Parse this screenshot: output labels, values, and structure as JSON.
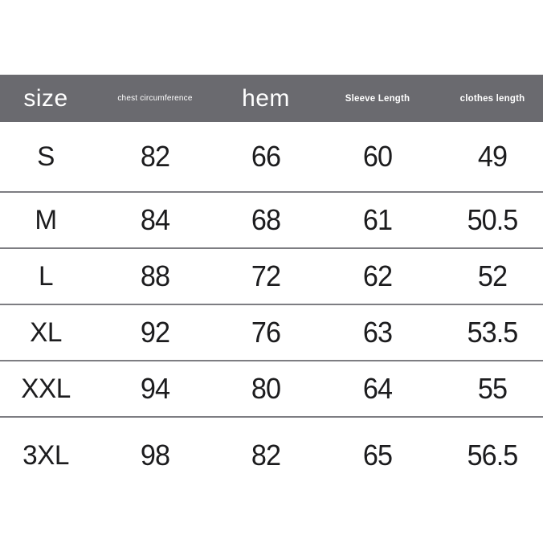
{
  "chart_data": {
    "type": "table",
    "columns": [
      {
        "key": "size",
        "label": "size"
      },
      {
        "key": "chest",
        "label": "chest circumference"
      },
      {
        "key": "hem",
        "label": "hem"
      },
      {
        "key": "sleeve",
        "label": "Sleeve Length"
      },
      {
        "key": "clothes",
        "label": "clothes length"
      }
    ],
    "rows": [
      {
        "size": "S",
        "chest": "82",
        "hem": "66",
        "sleeve": "60",
        "clothes": "49"
      },
      {
        "size": "M",
        "chest": "84",
        "hem": "68",
        "sleeve": "61",
        "clothes": "50.5"
      },
      {
        "size": "L",
        "chest": "88",
        "hem": "72",
        "sleeve": "62",
        "clothes": "52"
      },
      {
        "size": "XL",
        "chest": "92",
        "hem": "76",
        "sleeve": "63",
        "clothes": "53.5"
      },
      {
        "size": "XXL",
        "chest": "94",
        "hem": "80",
        "sleeve": "64",
        "clothes": "55"
      },
      {
        "size": "3XL",
        "chest": "98",
        "hem": "82",
        "sleeve": "65",
        "clothes": "56.5"
      }
    ]
  },
  "colors": {
    "header_bg": "#6a6a6f",
    "header_text": "#ffffff",
    "cell_text": "#1c1c1e",
    "divider": "#7d7d82",
    "background": "#ffffff"
  }
}
